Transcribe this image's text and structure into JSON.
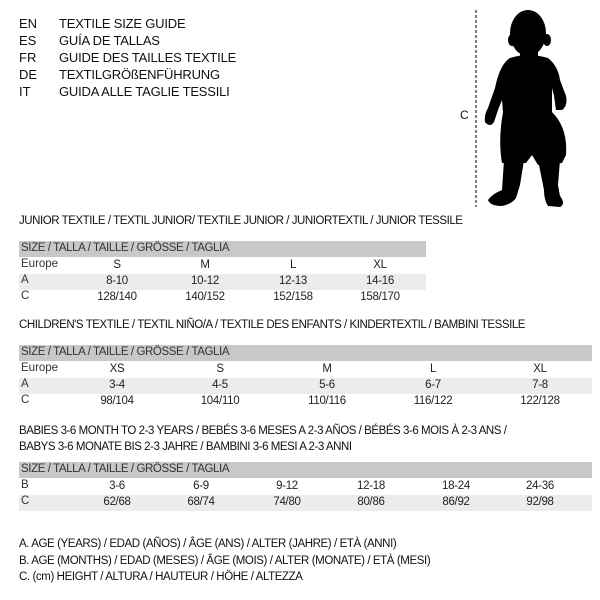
{
  "languages": [
    {
      "code": "EN",
      "text": "TEXTILE SIZE GUIDE"
    },
    {
      "code": "ES",
      "text": "GUÍA DE TALLAS"
    },
    {
      "code": "FR",
      "text": "GUIDE DES TAILLES TEXTILE"
    },
    {
      "code": "DE",
      "text": "TEXTILGRÖßENFÜHRUNG"
    },
    {
      "code": "IT",
      "text": "GUIDA ALLE TAGLIE TESSILI"
    }
  ],
  "figure": {
    "measure_label": "C",
    "icon": "baby-silhouette"
  },
  "size_header": "SIZE / TALLA / TAILLE / GRÖSSE / TAGLIA",
  "junior": {
    "title": "JUNIOR TEXTILE / TEXTIL JUNIOR/ TEXTILE JUNIOR / JUNIORTEXTIL / JUNIOR TESSILE",
    "rows": [
      {
        "label": "Europe",
        "cells": [
          "S",
          "M",
          "L",
          "XL"
        ]
      },
      {
        "label": "A",
        "cells": [
          "8-10",
          "10-12",
          "12-13",
          "14-16"
        ]
      },
      {
        "label": "C",
        "cells": [
          "128/140",
          "140/152",
          "152/158",
          "158/170"
        ]
      }
    ]
  },
  "children": {
    "title": "CHILDREN'S TEXTILE / TEXTIL NIÑO/A / TEXTILE DES ENFANTS / KINDERTEXTIL / BAMBINI TESSILE",
    "rows": [
      {
        "label": "Europe",
        "cells": [
          "XS",
          "S",
          "M",
          "L",
          "XL"
        ]
      },
      {
        "label": "A",
        "cells": [
          "3-4",
          "4-5",
          "5-6",
          "6-7",
          "7-8"
        ]
      },
      {
        "label": "C",
        "cells": [
          "98/104",
          "104/110",
          "110/116",
          "116/122",
          "122/128"
        ]
      }
    ]
  },
  "babies": {
    "title_line1": "BABIES 3-6 MONTH TO 2-3 YEARS / BEBÉS 3-6 MESES A 2-3 AÑOS / BÉBÉS 3-6 MOIS À 2-3 ANS /",
    "title_line2": "BABYS 3-6 MONATE BIS 2-3 JAHRE / BAMBINI 3-6 MESI A 2-3 ANNI",
    "rows": [
      {
        "label": "B",
        "cells": [
          "3-6",
          "6-9",
          "9-12",
          "12-18",
          "18-24",
          "24-36"
        ]
      },
      {
        "label": "C",
        "cells": [
          "62/68",
          "68/74",
          "74/80",
          "80/86",
          "86/92",
          "92/98"
        ]
      }
    ]
  },
  "legend": [
    "A. AGE (YEARS) / EDAD (AÑOS) / ÂGE (ANS) / ALTER (JAHRE) / ETÀ (ANNI)",
    "B. AGE (MONTHS) / EDAD (MESES) / ÂGE (MOIS) / ALTER (MONATE) / ETÀ (MESI)",
    "C. (cm) HEIGHT / ALTURA / HAUTEUR / HÖHE / ALTEZZA"
  ],
  "colors": {
    "header_bar": "#c8c8c8",
    "row_shade": "#ececec"
  }
}
